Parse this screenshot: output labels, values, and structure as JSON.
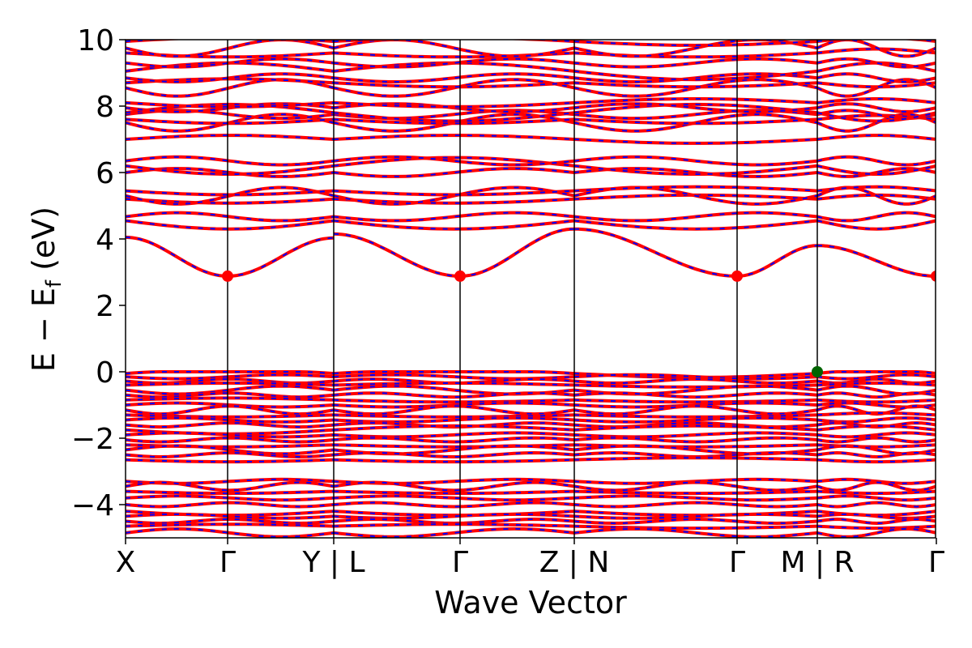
{
  "chart_data": {
    "type": "line",
    "title": "",
    "xlabel": "Wave Vector",
    "ylabel_parts": {
      "pre": "E − E",
      "sub": "f",
      "post": " (eV)"
    },
    "ylim": [
      -5,
      10
    ],
    "yticks": [
      {
        "value": 10,
        "label": "10"
      },
      {
        "value": 8,
        "label": "8"
      },
      {
        "value": 6,
        "label": "6"
      },
      {
        "value": 4,
        "label": "4"
      },
      {
        "value": 2,
        "label": "2"
      },
      {
        "value": 0,
        "label": "0"
      },
      {
        "value": -2,
        "label": "−2"
      },
      {
        "value": -4,
        "label": "−4"
      }
    ],
    "segments": [
      {
        "labels": [
          "X",
          "Γ",
          "Y"
        ],
        "width": [
          0.126,
          0.131
        ]
      },
      {
        "labels": [
          "L",
          "Γ",
          "Z"
        ],
        "width": [
          0.156,
          0.141
        ]
      },
      {
        "labels": [
          "N",
          "Γ",
          "M"
        ],
        "width": [
          0.201,
          0.099
        ]
      },
      {
        "labels": [
          "R",
          "Γ"
        ],
        "width": [
          0.147
        ]
      }
    ],
    "xtick_labels": [
      "X",
      "Γ",
      "Y | L",
      "Γ",
      "Z | N",
      "Γ",
      "M | R",
      "Γ"
    ],
    "series_colors": {
      "band_red": "#ff0000",
      "band_blue": "#0000ff",
      "cbm_marker": "#ff0000",
      "vbm_marker": "#006400"
    },
    "conduction_band_minimum": {
      "energy": 2.88,
      "at": [
        "Γ",
        "Γ",
        "Γ",
        "Γ"
      ]
    },
    "valence_band_maximum": {
      "energy": 0.0,
      "at": "M | R"
    },
    "lowest_conduction_band": [
      {
        "segment": 0,
        "from": 4.05,
        "mid": 2.88,
        "to": 4.03
      },
      {
        "segment": 1,
        "from": 4.15,
        "mid": 2.88,
        "to": 4.3
      },
      {
        "segment": 2,
        "from": 4.3,
        "mid": 2.88,
        "to": 3.8
      },
      {
        "segment": 3,
        "from": null,
        "mid": null,
        "to": 2.88
      }
    ],
    "grid": false,
    "legend": "none"
  }
}
